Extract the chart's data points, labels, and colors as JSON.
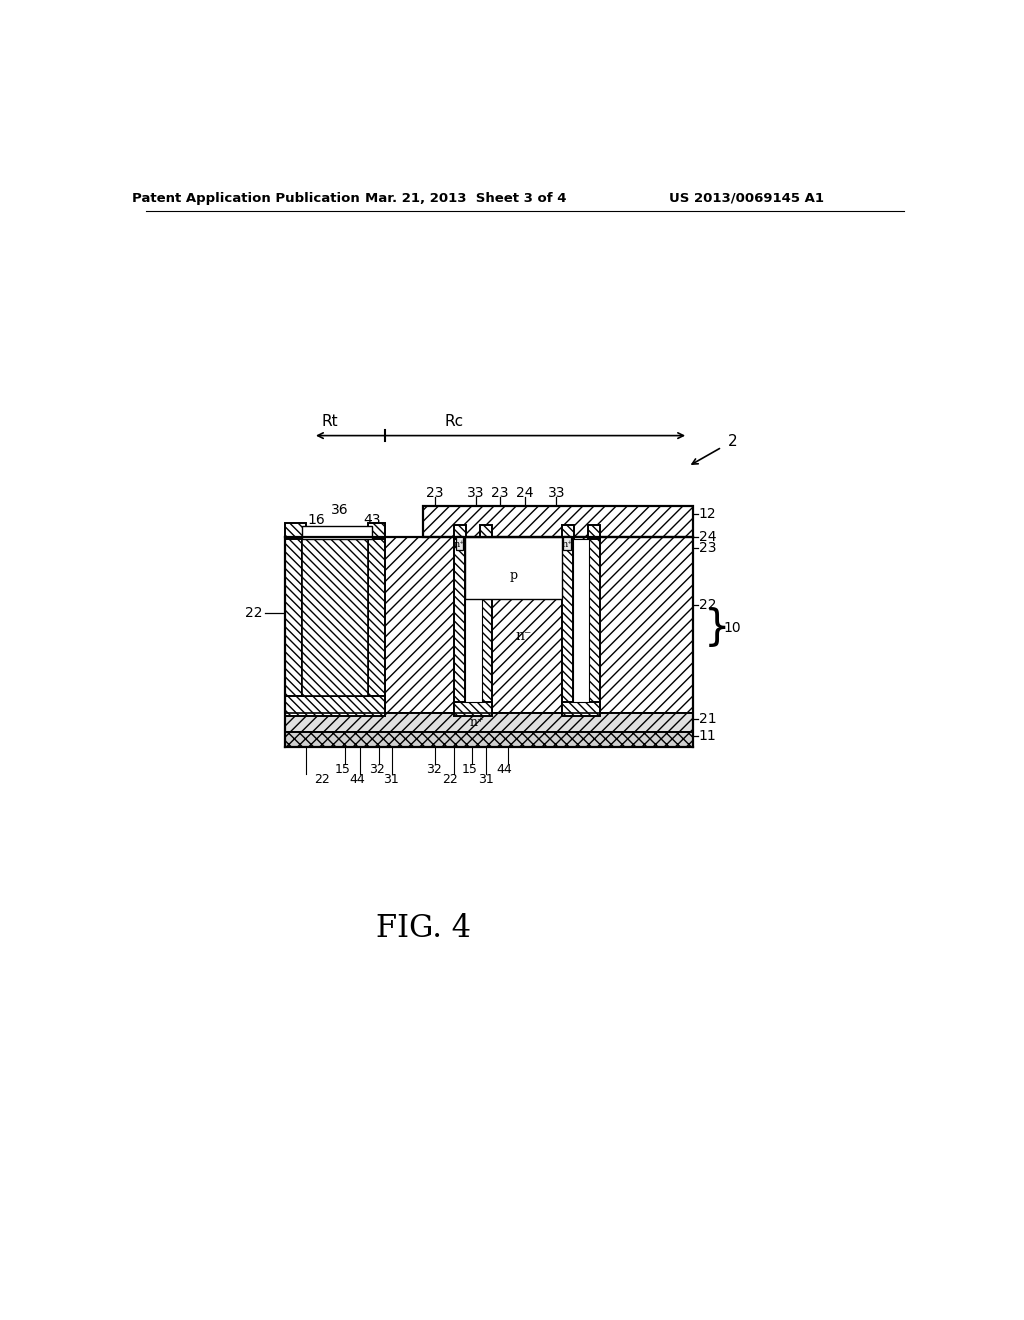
{
  "header_left": "Patent Application Publication",
  "header_mid": "Mar. 21, 2013  Sheet 3 of 4",
  "header_right": "US 2013/0069145 A1",
  "fig_label": "FIG. 4",
  "bg_color": "#ffffff",
  "lc": "#000000"
}
